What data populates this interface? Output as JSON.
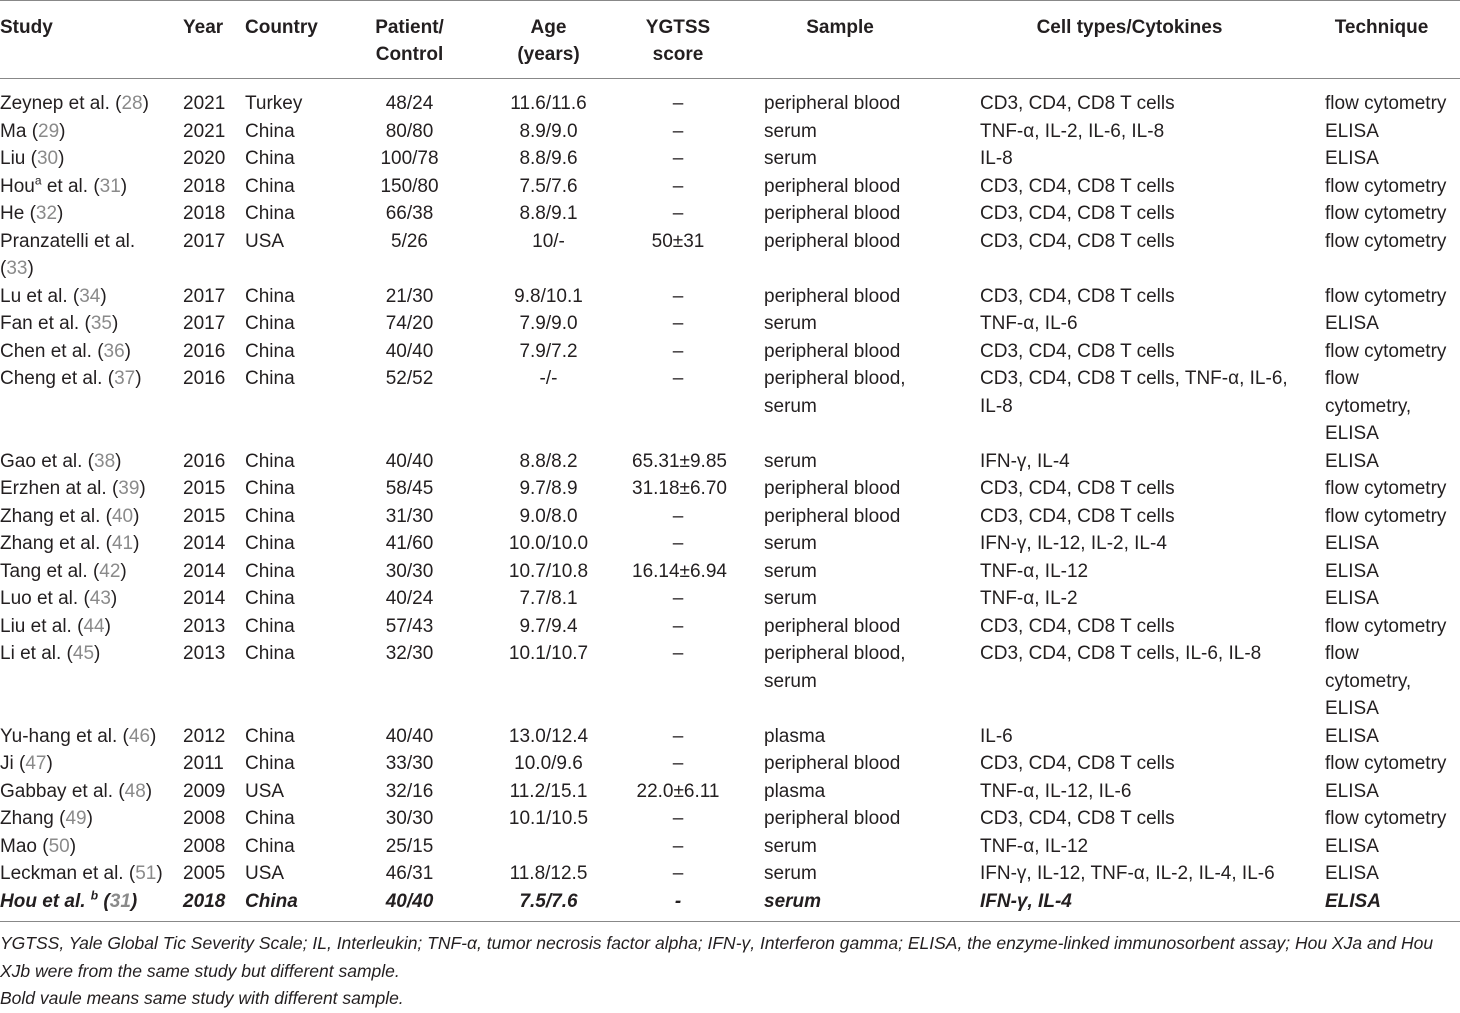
{
  "headers": [
    {
      "label": "Study",
      "align": "l"
    },
    {
      "label": "Year",
      "align": "l"
    },
    {
      "label": "Country",
      "align": "l"
    },
    {
      "label": "Patient/\nControl",
      "align": "c"
    },
    {
      "label": "Age\n(years)",
      "align": "c"
    },
    {
      "label": "YGTSS\nscore",
      "align": "c"
    },
    {
      "label": "Sample",
      "align": "c"
    },
    {
      "label": "Cell types/Cytokines",
      "align": "c"
    },
    {
      "label": "Technique",
      "align": "c"
    }
  ],
  "rows": [
    {
      "author": "Zeynep et al.",
      "ref": "28",
      "year": "2021",
      "country": "Turkey",
      "pc": "48/24",
      "age": "11.6/11.6",
      "ygtss": "–",
      "sample": "peripheral blood",
      "cells": "CD3, CD4, CD8 T cells",
      "tech": "flow cytometry"
    },
    {
      "author": "Ma",
      "ref": "29",
      "year": "2021",
      "country": "China",
      "pc": "80/80",
      "age": "8.9/9.0",
      "ygtss": "–",
      "sample": "serum",
      "cells": "TNF-α, IL-2, IL-6, IL-8",
      "tech": "ELISA"
    },
    {
      "author": "Liu",
      "ref": "30",
      "year": "2020",
      "country": "China",
      "pc": "100/78",
      "age": "8.8/9.6",
      "ygtss": "–",
      "sample": "serum",
      "cells": "IL-8",
      "tech": "ELISA"
    },
    {
      "author": "Hou",
      "sup": "a",
      "author_suffix": " et al.",
      "ref": "31",
      "year": "2018",
      "country": "China",
      "pc": "150/80",
      "age": "7.5/7.6",
      "ygtss": "–",
      "sample": "peripheral blood",
      "cells": "CD3, CD4, CD8 T cells",
      "tech": "flow cytometry"
    },
    {
      "author": "He",
      "ref": "32",
      "year": "2018",
      "country": "China",
      "pc": "66/38",
      "age": "8.8/9.1",
      "ygtss": "–",
      "sample": "peripheral blood",
      "cells": "CD3, CD4, CD8 T cells",
      "tech": "flow cytometry"
    },
    {
      "author": "Pranzatelli et al.",
      "ref": "33",
      "ref_newline": true,
      "year": "2017",
      "country": "USA",
      "pc": "5/26",
      "age": "10/-",
      "ygtss": "50±31",
      "sample": "peripheral blood",
      "cells": "CD3, CD4, CD8 T cells",
      "tech": "flow cytometry"
    },
    {
      "author": "Lu et al.",
      "ref": "34",
      "year": "2017",
      "country": "China",
      "pc": "21/30",
      "age": "9.8/10.1",
      "ygtss": "–",
      "sample": "peripheral blood",
      "cells": "CD3, CD4, CD8 T cells",
      "tech": "flow cytometry"
    },
    {
      "author": "Fan et al.",
      "ref": "35",
      "year": "2017",
      "country": "China",
      "pc": "74/20",
      "age": "7.9/9.0",
      "ygtss": "–",
      "sample": "serum",
      "cells": "TNF-α, IL-6",
      "tech": "ELISA"
    },
    {
      "author": "Chen et al.",
      "ref": "36",
      "year": "2016",
      "country": "China",
      "pc": "40/40",
      "age": "7.9/7.2",
      "ygtss": "–",
      "sample": "peripheral blood",
      "cells": "CD3, CD4, CD8 T cells",
      "tech": "flow cytometry"
    },
    {
      "author": "Cheng et al.",
      "ref": "37",
      "year": "2016",
      "country": "China",
      "pc": "52/52",
      "age": "-/-",
      "ygtss": "–",
      "sample": "peripheral blood,\nserum",
      "cells": "CD3, CD4, CD8 T cells, TNF-α, IL-6,\nIL-8",
      "tech": "flow\ncytometry,\nELISA"
    },
    {
      "author": "Gao et al.",
      "ref": "38",
      "year": "2016",
      "country": "China",
      "pc": "40/40",
      "age": "8.8/8.2",
      "ygtss": "65.31±9.85",
      "sample": "serum",
      "cells": "IFN-γ, IL-4",
      "tech": "ELISA"
    },
    {
      "author": "Erzhen at al.",
      "ref": "39",
      "year": "2015",
      "country": "China",
      "pc": "58/45",
      "age": "9.7/8.9",
      "ygtss": "31.18±6.70",
      "sample": "peripheral blood",
      "cells": "CD3, CD4, CD8 T cells",
      "tech": "flow cytometry"
    },
    {
      "author": "Zhang et al.",
      "ref": "40",
      "year": "2015",
      "country": "China",
      "pc": "31/30",
      "age": "9.0/8.0",
      "ygtss": "–",
      "sample": "peripheral blood",
      "cells": "CD3, CD4, CD8 T cells",
      "tech": "flow cytometry"
    },
    {
      "author": "Zhang et al.",
      "ref": "41",
      "year": "2014",
      "country": "China",
      "pc": "41/60",
      "age": "10.0/10.0",
      "ygtss": "–",
      "sample": "serum",
      "cells": "IFN-γ, IL-12, IL-2, IL-4",
      "tech": "ELISA"
    },
    {
      "author": "Tang et al.",
      "ref": "42",
      "year": "2014",
      "country": "China",
      "pc": "30/30",
      "age": "10.7/10.8",
      "ygtss": "16.14±6.94",
      "sample": "serum",
      "cells": "TNF-α, IL-12",
      "tech": "ELISA"
    },
    {
      "author": "Luo et al.",
      "ref": "43",
      "year": "2014",
      "country": "China",
      "pc": "40/24",
      "age": "7.7/8.1",
      "ygtss": "–",
      "sample": "serum",
      "cells": "TNF-α, IL-2",
      "tech": "ELISA"
    },
    {
      "author": "Liu et al.",
      "ref": "44",
      "year": "2013",
      "country": "China",
      "pc": "57/43",
      "age": "9.7/9.4",
      "ygtss": "–",
      "sample": "peripheral blood",
      "cells": "CD3, CD4, CD8 T cells",
      "tech": "flow cytometry"
    },
    {
      "author": "Li et al.",
      "ref": "45",
      "year": "2013",
      "country": "China",
      "pc": "32/30",
      "age": "10.1/10.7",
      "ygtss": "–",
      "sample": "peripheral blood,\nserum",
      "cells": "CD3, CD4, CD8 T cells, IL-6, IL-8",
      "tech": "flow\ncytometry,\nELISA"
    },
    {
      "author": "Yu-hang et al.",
      "ref": "46",
      "year": "2012",
      "country": "China",
      "pc": "40/40",
      "age": "13.0/12.4",
      "ygtss": "–",
      "sample": "plasma",
      "cells": "IL-6",
      "tech": "ELISA"
    },
    {
      "author": "Ji",
      "ref": "47",
      "year": "2011",
      "country": "China",
      "pc": "33/30",
      "age": "10.0/9.6",
      "ygtss": "–",
      "sample": "peripheral blood",
      "cells": "CD3, CD4, CD8 T cells",
      "tech": "flow cytometry"
    },
    {
      "author": "Gabbay et al.",
      "ref": "48",
      "year": "2009",
      "country": "USA",
      "pc": "32/16",
      "age": "11.2/15.1",
      "ygtss": "22.0±6.11",
      "sample": "plasma",
      "cells": "TNF-α, IL-12, IL-6",
      "tech": "ELISA"
    },
    {
      "author": "Zhang",
      "ref": "49",
      "year": "2008",
      "country": "China",
      "pc": "30/30",
      "age": "10.1/10.5",
      "ygtss": "–",
      "sample": "peripheral blood",
      "cells": "CD3, CD4, CD8 T cells",
      "tech": "flow cytometry"
    },
    {
      "author": "Mao",
      "ref": "50",
      "year": "2008",
      "country": "China",
      "pc": "25/15",
      "age": "",
      "ygtss": "–",
      "sample": "serum",
      "cells": "TNF-α, IL-12",
      "tech": "ELISA"
    },
    {
      "author": "Leckman et al.",
      "ref": "51",
      "year": "2005",
      "country": "USA",
      "pc": "46/31",
      "age": "11.8/12.5",
      "ygtss": "–",
      "sample": "serum",
      "cells": "IFN-γ, IL-12, TNF-α, IL-2, IL-4, IL-6",
      "tech": "ELISA"
    },
    {
      "author": "Hou et al. ",
      "sup": "b",
      "ref": "31",
      "bold": true,
      "year": "2018",
      "country": "China",
      "pc": "40/40",
      "age": "7.5/7.6",
      "ygtss": "-",
      "sample": "serum",
      "cells": "IFN-γ, IL-4",
      "tech": "ELISA"
    }
  ],
  "notes": [
    "YGTSS, Yale Global Tic Severity Scale; IL, Interleukin; TNF-α, tumor necrosis factor alpha; IFN-γ, Interferon gamma; ELISA, the enzyme-linked immunosorbent assay; Hou XJa and Hou XJb were from the same study but different sample.",
    "Bold vaule means same study with different sample."
  ]
}
